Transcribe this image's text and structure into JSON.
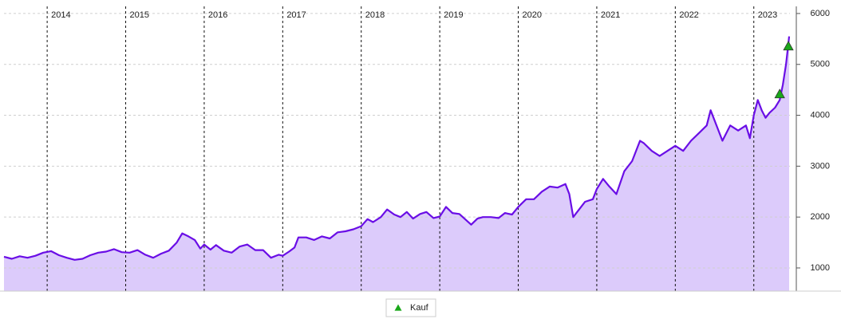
{
  "chart_data": {
    "type": "line",
    "color": "#6a0ee6",
    "fill": "#dccbfb",
    "grid": true,
    "x": [
      2013.45,
      2013.55,
      2013.65,
      2013.75,
      2013.85,
      2013.95,
      2014.05,
      2014.15,
      2014.25,
      2014.35,
      2014.45,
      2014.55,
      2014.65,
      2014.75,
      2014.85,
      2014.95,
      2015.05,
      2015.15,
      2015.25,
      2015.35,
      2015.45,
      2015.55,
      2015.65,
      2015.72,
      2015.8,
      2015.88,
      2015.95,
      2016.0,
      2016.08,
      2016.15,
      2016.25,
      2016.35,
      2016.45,
      2016.55,
      2016.65,
      2016.75,
      2016.85,
      2016.95,
      2017.0,
      2017.08,
      2017.15,
      2017.2,
      2017.3,
      2017.4,
      2017.5,
      2017.6,
      2017.7,
      2017.8,
      2017.9,
      2018.0,
      2018.08,
      2018.15,
      2018.25,
      2018.33,
      2018.42,
      2018.5,
      2018.58,
      2018.66,
      2018.75,
      2018.83,
      2018.92,
      2019.0,
      2019.08,
      2019.16,
      2019.25,
      2019.33,
      2019.4,
      2019.48,
      2019.55,
      2019.65,
      2019.75,
      2019.83,
      2019.92,
      2020.0,
      2020.1,
      2020.2,
      2020.3,
      2020.4,
      2020.5,
      2020.6,
      2020.65,
      2020.7,
      2020.75,
      2020.85,
      2020.95,
      2021.0,
      2021.08,
      2021.16,
      2021.25,
      2021.35,
      2021.45,
      2021.55,
      2021.6,
      2021.7,
      2021.8,
      2021.9,
      2022.0,
      2022.1,
      2022.2,
      2022.3,
      2022.4,
      2022.45,
      2022.5,
      2022.6,
      2022.7,
      2022.8,
      2022.9,
      2022.95,
      2023.0,
      2023.05,
      2023.1,
      2023.15,
      2023.2,
      2023.27,
      2023.33,
      2023.37,
      2023.41,
      2023.44,
      2023.45
    ],
    "values": [
      1220,
      1180,
      1230,
      1200,
      1240,
      1300,
      1330,
      1250,
      1200,
      1160,
      1180,
      1250,
      1300,
      1320,
      1370,
      1310,
      1300,
      1350,
      1260,
      1200,
      1280,
      1340,
      1500,
      1680,
      1620,
      1550,
      1380,
      1460,
      1360,
      1450,
      1340,
      1300,
      1420,
      1460,
      1350,
      1350,
      1200,
      1260,
      1240,
      1320,
      1400,
      1600,
      1600,
      1550,
      1620,
      1580,
      1700,
      1720,
      1760,
      1820,
      1960,
      1900,
      2000,
      2150,
      2050,
      2000,
      2100,
      1970,
      2060,
      2100,
      1980,
      2010,
      2200,
      2080,
      2060,
      1950,
      1850,
      1970,
      2000,
      2000,
      1980,
      2080,
      2050,
      2200,
      2350,
      2350,
      2500,
      2600,
      2580,
      2650,
      2450,
      2000,
      2100,
      2300,
      2350,
      2550,
      2750,
      2600,
      2450,
      2900,
      3100,
      3500,
      3450,
      3300,
      3200,
      3300,
      3400,
      3300,
      3500,
      3650,
      3800,
      4100,
      3900,
      3500,
      3800,
      3700,
      3800,
      3550,
      4000,
      4300,
      4100,
      3950,
      4050,
      4150,
      4300,
      4600,
      5000,
      5400,
      5550
    ],
    "series": [
      {
        "name": "Kauf",
        "color": "#1aa81a",
        "x": [
          2023.33,
          2023.44
        ],
        "values": [
          4417,
          5357
        ]
      }
    ],
    "xlim": [
      2013.45,
      2023.46
    ],
    "xticks": [
      2014,
      2015,
      2016,
      2017,
      2018,
      2019,
      2020,
      2021,
      2022,
      2023
    ],
    "ylim": [
      545,
      6140
    ],
    "yticks": [
      1000,
      2000,
      3000,
      4000,
      5000,
      6000
    ]
  }
}
